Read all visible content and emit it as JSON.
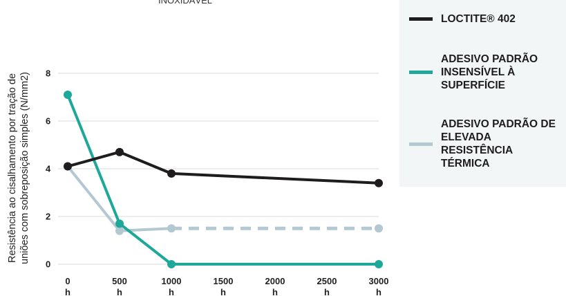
{
  "chart_data": {
    "type": "line",
    "title": "INOXIDÁVEL",
    "ylabel": [
      "Resistência ao cisalhamento por tração de",
      "uniões com sobreposição simples (N/mm2)"
    ],
    "ylim": [
      0,
      8
    ],
    "yticks": [
      "0",
      "2",
      "4",
      "6",
      "8"
    ],
    "x_ticks": [
      {
        "value": 0,
        "label": "0",
        "unit": "h"
      },
      {
        "value": 500,
        "label": "500",
        "unit": "h"
      },
      {
        "value": 1000,
        "label": "1000",
        "unit": "h"
      },
      {
        "value": 1500,
        "label": "1500",
        "unit": "h"
      },
      {
        "value": 2000,
        "label": "2000",
        "unit": "h"
      },
      {
        "value": 2500,
        "label": "2500",
        "unit": "h"
      },
      {
        "value": 3000,
        "label": "3000",
        "unit": "h"
      }
    ],
    "grid": true,
    "legend": "right",
    "series": [
      {
        "name": "LOCTITE® 402",
        "color": "#1f1c1d",
        "x": [
          0,
          500,
          1000,
          3000
        ],
        "y": [
          4.1,
          4.7,
          3.8,
          3.4
        ],
        "dashed_from": null
      },
      {
        "name": "ADESIVO PADRÃO INSENSÍVEL À SUPERFÍCIE",
        "color": "#1da89a",
        "x": [
          0,
          500,
          1000,
          3000
        ],
        "y": [
          7.1,
          1.7,
          0,
          0
        ],
        "dashed_from": null
      },
      {
        "name": "ADESIVO PADRÃO DE ELEVADA RESISTÊNCIA TÉRMICA",
        "color": "#b4c8d2",
        "x": [
          0,
          500,
          1000,
          3000
        ],
        "y": [
          4.1,
          1.4,
          1.5,
          1.5
        ],
        "dashed_from": 2
      }
    ]
  },
  "legend_items": [
    {
      "label": "LOCTITE® 402",
      "color": "#1f1c1d"
    },
    {
      "label": "ADESIVO PADRÃO INSENSÍVEL À SUPERFÍCIE",
      "color": "#1da89a"
    },
    {
      "label": "ADESIVO PADRÃO DE ELEVADA RESISTÊNCIA TÉRMICA",
      "color": "#b4c8d2"
    }
  ]
}
